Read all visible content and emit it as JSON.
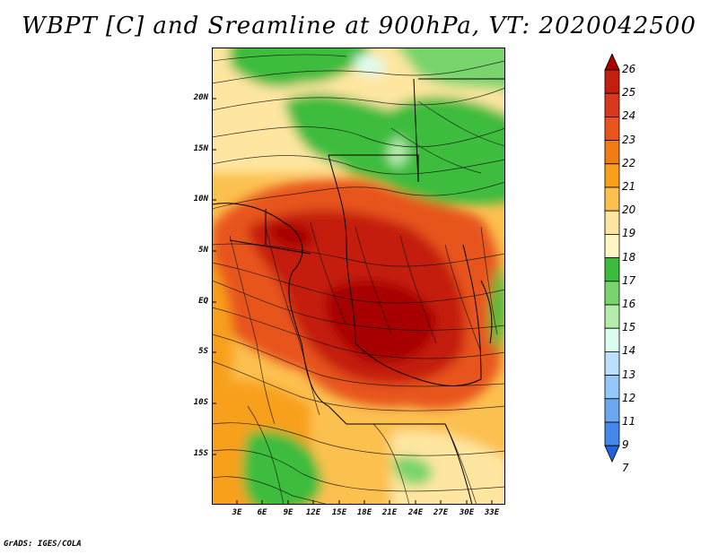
{
  "title": "WBPT [C] and Sreamline at 900hPa, VT: 2020042500",
  "footer": "GrADS: IGES/COLA",
  "map": {
    "lat_labels": [
      "20N",
      "15N",
      "10N",
      "5N",
      "EQ",
      "5S",
      "10S",
      "15S"
    ],
    "lon_labels": [
      "3E",
      "6E",
      "9E",
      "12E",
      "15E",
      "18E",
      "21E",
      "24E",
      "27E",
      "30E",
      "33E"
    ]
  },
  "colorbar": {
    "labels": [
      "26",
      "25",
      "24",
      "23",
      "22",
      "21",
      "20",
      "19",
      "18",
      "17",
      "16",
      "15",
      "14",
      "13",
      "12",
      "11",
      "9",
      "7"
    ],
    "colors": [
      "#a80000",
      "#c41e0c",
      "#d8381c",
      "#e8541c",
      "#f07c14",
      "#f8a01a",
      "#fcc050",
      "#fee6a0",
      "#fff6c4",
      "#3cbc3c",
      "#78d46c",
      "#b4ecac",
      "#dcfcf0",
      "#bce0fc",
      "#94c8f8",
      "#6ca8f0",
      "#4488e8",
      "#2064dc"
    ]
  }
}
